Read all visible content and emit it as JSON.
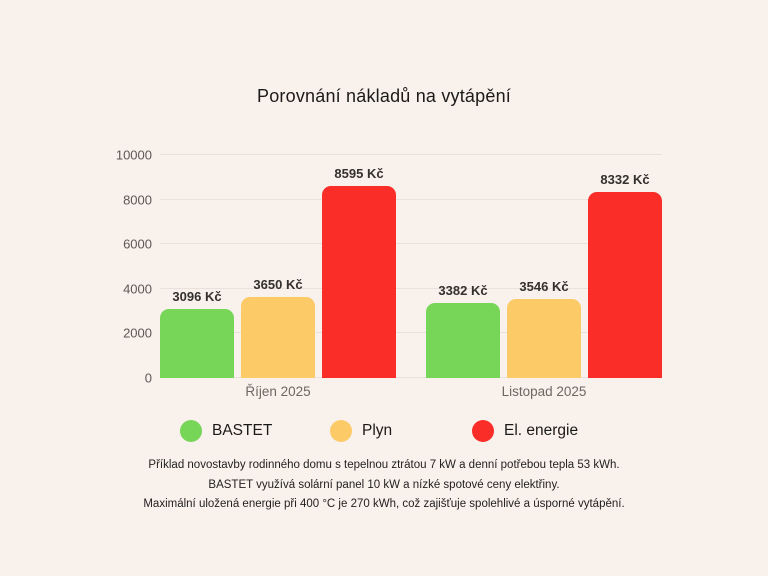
{
  "title": "Porovnání nákladů na vytápění",
  "chart_data": {
    "type": "bar",
    "categories": [
      "Říjen 2025",
      "Listopad 2025"
    ],
    "series": [
      {
        "name": "BASTET",
        "color": "#77d558",
        "values": [
          3096,
          3382
        ],
        "labels": [
          "3096 Kč",
          "3382 Kč"
        ]
      },
      {
        "name": "Plyn",
        "color": "#fcca67",
        "values": [
          3650,
          3546
        ],
        "labels": [
          "3650 Kč",
          "3546 Kč"
        ]
      },
      {
        "name": "El. energie",
        "color": "#fb2d28",
        "values": [
          8595,
          8332
        ],
        "labels": [
          "8595 Kč",
          "8332 Kč"
        ]
      }
    ],
    "unit": "Kč",
    "ylim": [
      0,
      10000
    ],
    "yticks": [
      "0",
      "2000",
      "4000",
      "6000",
      "8000",
      "10000"
    ],
    "grid": true,
    "legend_position": "bottom"
  },
  "colors": {
    "background": "#f8f1ec",
    "gridline": "#e9e2dc",
    "bastet_green": "#77d558",
    "plyn_yellow": "#fcca67",
    "energie_red": "#fb2d28"
  },
  "footer": {
    "lines": [
      "Příklad novostavby rodinného domu s tepelnou ztrátou 7 kW a denní potřebou tepla 53 kWh.",
      "BASTET využívá solární panel 10 kW a nízké spotové ceny elektřiny.",
      "Maximální uložená energie při 400 °C je 270 kWh, což zajišťuje spolehlivé a úsporné vytápění."
    ]
  }
}
